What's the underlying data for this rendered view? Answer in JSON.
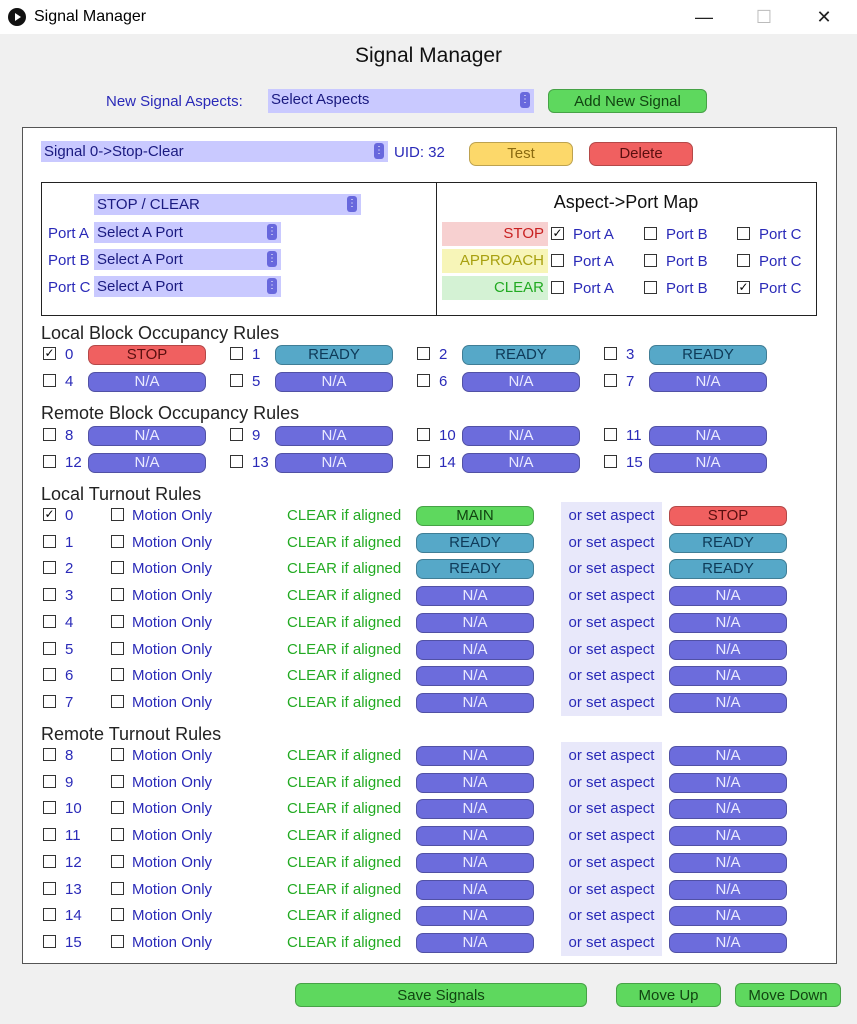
{
  "window": {
    "title": "Signal Manager",
    "minimize": "—",
    "maximize": "☐",
    "close": "✕"
  },
  "heading": "Signal Manager",
  "new_signal": {
    "label": "New Signal Aspects:",
    "select_value": "Select Aspects",
    "add_button": "Add New Signal"
  },
  "signal": {
    "select_value": "Signal 0->Stop-Clear",
    "uid_text": "UID: 32",
    "test_button": "Test",
    "delete_button": "Delete",
    "aspect_select": "STOP / CLEAR",
    "ports": [
      {
        "label": "Port A",
        "value": "Select A Port"
      },
      {
        "label": "Port B",
        "value": "Select A Port"
      },
      {
        "label": "Port C",
        "value": "Select A Port"
      }
    ]
  },
  "aspect_map": {
    "title": "Aspect->Port Map",
    "column_labels": [
      "Port A",
      "Port B",
      "Port C"
    ],
    "rows": [
      {
        "aspect": "STOP",
        "color": "#f7d0d0",
        "text_color": "#c82020",
        "checked": [
          true,
          false,
          false
        ]
      },
      {
        "aspect": "APPROACH",
        "color": "#f7f5b8",
        "text_color": "#a8a010",
        "checked": [
          false,
          false,
          false
        ]
      },
      {
        "aspect": "CLEAR",
        "color": "#d4f2d4",
        "text_color": "#22aa22",
        "checked": [
          false,
          false,
          true
        ]
      }
    ]
  },
  "local_block": {
    "title": "Local Block Occupancy Rules",
    "items": [
      {
        "num": "0",
        "checked": true,
        "value": "STOP",
        "style": "red"
      },
      {
        "num": "1",
        "checked": false,
        "value": "READY",
        "style": "teal"
      },
      {
        "num": "2",
        "checked": false,
        "value": "READY",
        "style": "teal"
      },
      {
        "num": "3",
        "checked": false,
        "value": "READY",
        "style": "teal"
      },
      {
        "num": "4",
        "checked": false,
        "value": "N/A",
        "style": "violet"
      },
      {
        "num": "5",
        "checked": false,
        "value": "N/A",
        "style": "violet"
      },
      {
        "num": "6",
        "checked": false,
        "value": "N/A",
        "style": "violet"
      },
      {
        "num": "7",
        "checked": false,
        "value": "N/A",
        "style": "violet"
      }
    ]
  },
  "remote_block": {
    "title": "Remote Block Occupancy Rules",
    "items": [
      {
        "num": "8",
        "checked": false,
        "value": "N/A",
        "style": "violet"
      },
      {
        "num": "9",
        "checked": false,
        "value": "N/A",
        "style": "violet"
      },
      {
        "num": "10",
        "checked": false,
        "value": "N/A",
        "style": "violet"
      },
      {
        "num": "11",
        "checked": false,
        "value": "N/A",
        "style": "violet"
      },
      {
        "num": "12",
        "checked": false,
        "value": "N/A",
        "style": "violet"
      },
      {
        "num": "13",
        "checked": false,
        "value": "N/A",
        "style": "violet"
      },
      {
        "num": "14",
        "checked": false,
        "value": "N/A",
        "style": "violet"
      },
      {
        "num": "15",
        "checked": false,
        "value": "N/A",
        "style": "violet"
      }
    ]
  },
  "turnout_texts": {
    "motion_only": "Motion Only",
    "clear_if": "CLEAR if aligned",
    "or_set": "or set aspect"
  },
  "local_turnout": {
    "title": "Local Turnout Rules",
    "rows": [
      {
        "num": "0",
        "checked": true,
        "motion": false,
        "aligned": "MAIN",
        "aligned_style": "green",
        "aspect": "STOP",
        "aspect_style": "red"
      },
      {
        "num": "1",
        "checked": false,
        "motion": false,
        "aligned": "READY",
        "aligned_style": "teal",
        "aspect": "READY",
        "aspect_style": "teal"
      },
      {
        "num": "2",
        "checked": false,
        "motion": false,
        "aligned": "READY",
        "aligned_style": "teal",
        "aspect": "READY",
        "aspect_style": "teal"
      },
      {
        "num": "3",
        "checked": false,
        "motion": false,
        "aligned": "N/A",
        "aligned_style": "violet",
        "aspect": "N/A",
        "aspect_style": "violet"
      },
      {
        "num": "4",
        "checked": false,
        "motion": false,
        "aligned": "N/A",
        "aligned_style": "violet",
        "aspect": "N/A",
        "aspect_style": "violet"
      },
      {
        "num": "5",
        "checked": false,
        "motion": false,
        "aligned": "N/A",
        "aligned_style": "violet",
        "aspect": "N/A",
        "aspect_style": "violet"
      },
      {
        "num": "6",
        "checked": false,
        "motion": false,
        "aligned": "N/A",
        "aligned_style": "violet",
        "aspect": "N/A",
        "aspect_style": "violet"
      },
      {
        "num": "7",
        "checked": false,
        "motion": false,
        "aligned": "N/A",
        "aligned_style": "violet",
        "aspect": "N/A",
        "aspect_style": "violet"
      }
    ]
  },
  "remote_turnout": {
    "title": "Remote Turnout Rules",
    "rows": [
      {
        "num": "8",
        "checked": false,
        "motion": false,
        "aligned": "N/A",
        "aligned_style": "violet",
        "aspect": "N/A",
        "aspect_style": "violet"
      },
      {
        "num": "9",
        "checked": false,
        "motion": false,
        "aligned": "N/A",
        "aligned_style": "violet",
        "aspect": "N/A",
        "aspect_style": "violet"
      },
      {
        "num": "10",
        "checked": false,
        "motion": false,
        "aligned": "N/A",
        "aligned_style": "violet",
        "aspect": "N/A",
        "aspect_style": "violet"
      },
      {
        "num": "11",
        "checked": false,
        "motion": false,
        "aligned": "N/A",
        "aligned_style": "violet",
        "aspect": "N/A",
        "aspect_style": "violet"
      },
      {
        "num": "12",
        "checked": false,
        "motion": false,
        "aligned": "N/A",
        "aligned_style": "violet",
        "aspect": "N/A",
        "aspect_style": "violet"
      },
      {
        "num": "13",
        "checked": false,
        "motion": false,
        "aligned": "N/A",
        "aligned_style": "violet",
        "aspect": "N/A",
        "aspect_style": "violet"
      },
      {
        "num": "14",
        "checked": false,
        "motion": false,
        "aligned": "N/A",
        "aligned_style": "violet",
        "aspect": "N/A",
        "aspect_style": "violet"
      },
      {
        "num": "15",
        "checked": false,
        "motion": false,
        "aligned": "N/A",
        "aligned_style": "violet",
        "aspect": "N/A",
        "aspect_style": "violet"
      }
    ]
  },
  "footer": {
    "save_button": "Save Signals",
    "move_up_button": "Move Up",
    "move_down_button": "Move Down"
  }
}
